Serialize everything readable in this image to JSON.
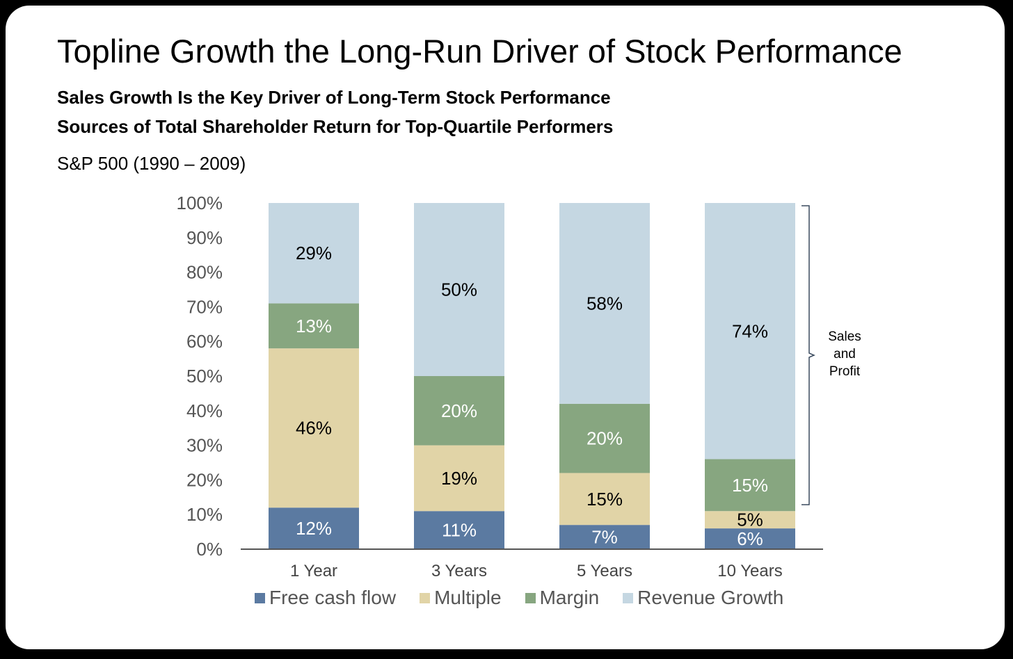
{
  "title": "Topline Growth the Long-Run Driver of Stock Performance",
  "subtitle1": "Sales Growth Is the Key Driver of Long-Term Stock Performance",
  "subtitle2": "Sources of Total Shareholder Return for Top-Quartile Performers",
  "subtitle3": "S&P 500 (1990 – 2009)",
  "bracket_label": "Sales\nand\nProfit",
  "chart_data": {
    "type": "bar",
    "stacked": true,
    "categories": [
      "1 Year",
      "3 Years",
      "5 Years",
      "10 Years"
    ],
    "series": [
      {
        "name": "Free cash flow",
        "values": [
          12,
          11,
          7,
          6
        ],
        "color": "#5b7aa1",
        "label_color": "#ffffff"
      },
      {
        "name": "Multiple",
        "values": [
          46,
          19,
          15,
          5
        ],
        "color": "#e1d4a7",
        "label_color": "#000000"
      },
      {
        "name": "Margin",
        "values": [
          13,
          20,
          20,
          15
        ],
        "color": "#87a680",
        "label_color": "#ffffff"
      },
      {
        "name": "Revenue Growth",
        "values": [
          29,
          50,
          58,
          74
        ],
        "color": "#c5d7e2",
        "label_color": "#000000"
      }
    ],
    "ylim": [
      0,
      100
    ],
    "yticks": [
      "0%",
      "10%",
      "20%",
      "30%",
      "40%",
      "50%",
      "60%",
      "70%",
      "80%",
      "90%",
      "100%"
    ],
    "legend": "bottom",
    "grid": false,
    "annotation": "Sales and Profit"
  }
}
